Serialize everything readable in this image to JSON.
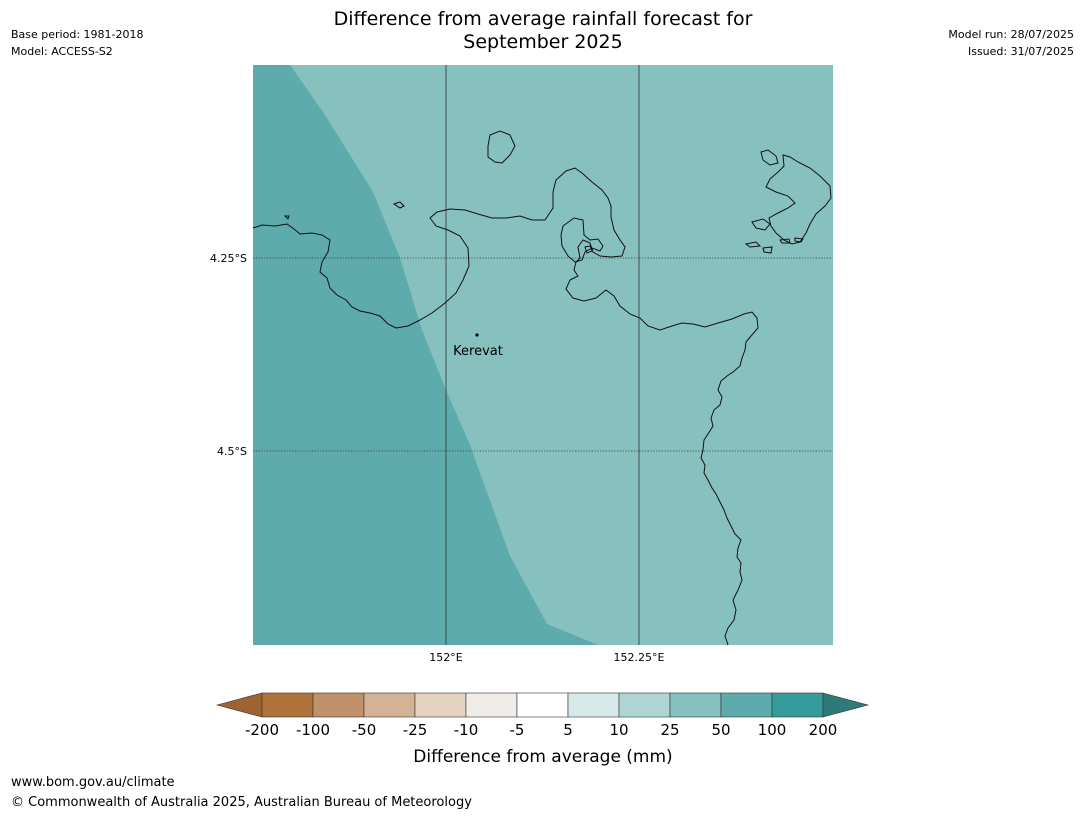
{
  "header": {
    "title_line1": "Difference from average rainfall forecast for",
    "title_line2": "September 2025",
    "base_period": "Base period: 1981-2018",
    "model": "Model: ACCESS-S2",
    "model_run": "Model run: 28/07/2025",
    "issued": "Issued: 31/07/2025"
  },
  "map": {
    "lat_labels": [
      "4.25°S",
      "4.5°S"
    ],
    "lon_labels": [
      "152°E",
      "152.25°E"
    ],
    "place": "Kerevat",
    "colors": {
      "category_50_100": "#5dabad",
      "category_25_50": "#86c0bf",
      "coastline": "#111111"
    }
  },
  "colorbar": {
    "ticks": [
      "-200",
      "-100",
      "-50",
      "-25",
      "-10",
      "-5",
      "5",
      "10",
      "25",
      "50",
      "100",
      "200"
    ],
    "colors": [
      "#9e6330",
      "#b0733c",
      "#c1916a",
      "#d4b294",
      "#e5d3c2",
      "#f0ece8",
      "#ffffff",
      "#d7e9e9",
      "#aed5d4",
      "#86c0bf",
      "#5dabad",
      "#359b9a",
      "#2d7a78"
    ],
    "label": "Difference from average (mm)"
  },
  "footer": {
    "url": "www.bom.gov.au/climate",
    "copyright": "© Commonwealth of Australia 2025, Australian Bureau of Meteorology"
  }
}
